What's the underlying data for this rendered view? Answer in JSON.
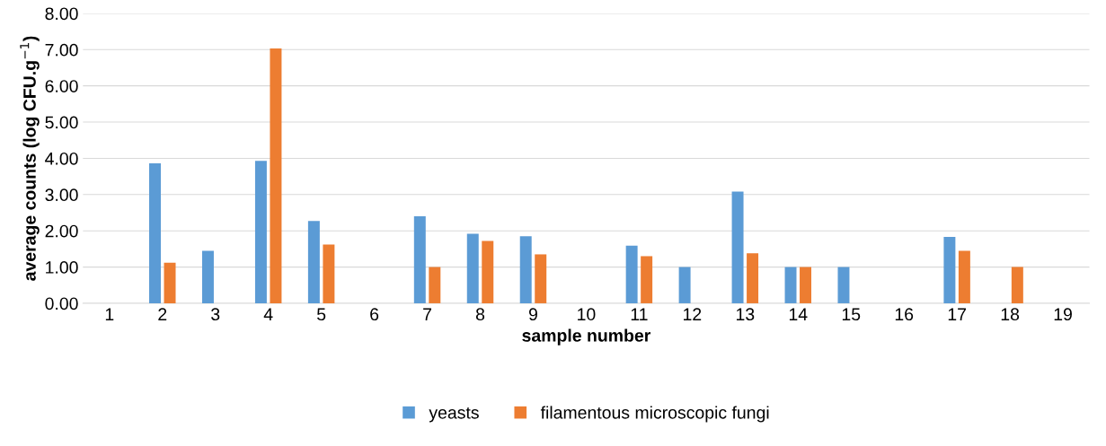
{
  "chart_data": {
    "type": "bar",
    "xlabel": "sample number",
    "ylabel": "average counts (log CFU.g$^{−1}$)",
    "categories": [
      "1",
      "2",
      "3",
      "4",
      "5",
      "6",
      "7",
      "8",
      "9",
      "10",
      "11",
      "12",
      "13",
      "14",
      "15",
      "16",
      "17",
      "18",
      "19"
    ],
    "series": [
      {
        "name": "yeasts",
        "color": "#5b9bd5",
        "values": [
          0,
          3.86,
          1.45,
          3.93,
          2.27,
          0,
          2.4,
          1.92,
          1.85,
          0,
          1.59,
          1.0,
          3.08,
          1.0,
          1.0,
          0,
          1.83,
          0,
          0
        ]
      },
      {
        "name": "filamentous microscopic fungi",
        "color": "#ed7d31",
        "values": [
          0,
          1.12,
          0,
          7.03,
          1.62,
          0,
          1.0,
          1.72,
          1.35,
          0,
          1.3,
          0,
          1.38,
          1.0,
          0,
          0,
          1.45,
          1.0,
          0
        ]
      }
    ],
    "ylim": [
      0,
      8
    ],
    "yticks": [
      {
        "value": 0,
        "label": "0.00"
      },
      {
        "value": 1,
        "label": "1.00"
      },
      {
        "value": 2,
        "label": "2.00"
      },
      {
        "value": 3,
        "label": "3.00"
      },
      {
        "value": 4,
        "label": "4.00"
      },
      {
        "value": 5,
        "label": "5.00"
      },
      {
        "value": 6,
        "label": "6.00"
      },
      {
        "value": 7,
        "label": "7.00"
      },
      {
        "value": 8,
        "label": "8.00"
      }
    ],
    "grid": "y",
    "legend": "bottom"
  }
}
